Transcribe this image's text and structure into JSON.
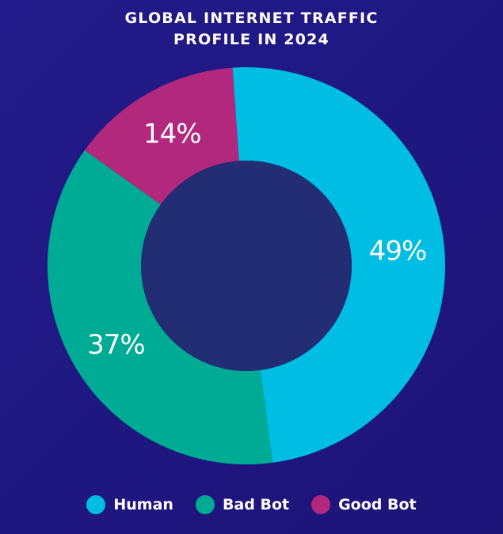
{
  "chart_data": {
    "type": "pie",
    "title_lines": [
      "GLOBAL INTERNET TRAFFIC",
      "PROFILE IN 2024"
    ],
    "categories": [
      "Human",
      "Bad Bot",
      "Good Bot"
    ],
    "values": [
      49,
      37,
      14
    ],
    "value_labels": [
      "49%",
      "37%",
      "14%"
    ],
    "colors": [
      "#00bde3",
      "#00ab96",
      "#b1287c"
    ],
    "center_color": "#232d73",
    "legend_position": "bottom",
    "donut": true
  }
}
